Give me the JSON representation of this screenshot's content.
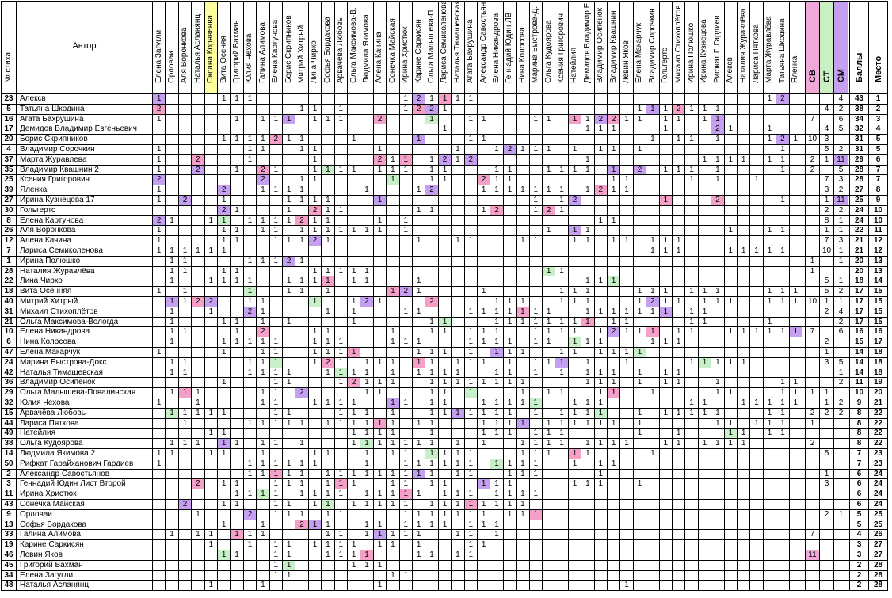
{
  "header": {
    "num_label": "№ стиха",
    "author_label": "Автор",
    "voters": [
      "Елена Загугли",
      "Орловаи",
      "Аля Воронкова",
      "Наталья Асланянц",
      "Оксана Корявенва",
      "Вита Осеняя",
      "Григорий Вахман",
      "Юлия Чехова",
      "Галина Алимова",
      "Елена Картунова",
      "Борис Скрипников",
      "Митрий Хитрый",
      "Лина Чирко",
      "Софья Бордакова",
      "Арвачёва Любовь",
      "Ольга Максимова-В.",
      "Людмила Якимова",
      "Алена Качина",
      "Сонечка Майская",
      "Ирина Христюк",
      "Карине Саркисян",
      "Ольга Малышева-П.",
      "Лариса Семиколенова",
      "Наталья Тимашевская",
      "Агата Бахрушина",
      "Александр Савостьянов",
      "Елена Никандрова",
      "Геннадий Юдин ЛВ",
      "Нина Колосова",
      "Марина Быстрова-Д.",
      "Ольга Кудоярова",
      "Ксения Григорович",
      "Натейлия",
      "Демидов Владимир Е.",
      "Владимир Осипёнок",
      "Владимир Квашнин",
      "Левин Яков",
      "Елена Макарчук",
      "Владимир Сорочкин",
      "Гольгертс",
      "Михаил Стихоплётов",
      "Ирина Полюшко",
      "Ирина Кузнецова",
      "Рифкат Г. Гардиев",
      "Алексв",
      "Наталия Журавлёва",
      "Лариса Пяткова",
      "Марта Журавлёва",
      "Татьяна Шкодина",
      "Яленка"
    ],
    "sv": "СВ",
    "st": "СТ",
    "sm": "СМ",
    "points": "Баллы",
    "place": "Место"
  },
  "rows": [
    {
      "num": "23",
      "author": "Алексв",
      "sv": "",
      "st": "",
      "sm": "4",
      "pts": "43",
      "place": "1"
    },
    {
      "num": "5",
      "author": "Татьяна Шкодина",
      "sv": "",
      "st": "4",
      "sm": "2",
      "pts": "38",
      "place": "2"
    },
    {
      "num": "16",
      "author": "Агата Бахрушина",
      "sv": "7",
      "st": "",
      "sm": "6",
      "pts": "34",
      "place": "3"
    },
    {
      "num": "17",
      "author": "Демидов Владимир Евгеньевич",
      "sv": "",
      "st": "4",
      "sm": "5",
      "pts": "32",
      "place": "4"
    },
    {
      "num": "20",
      "author": "Борис Скрипников",
      "sv": "10",
      "st": "3",
      "sm": "",
      "pts": "31",
      "place": "5"
    },
    {
      "num": "4",
      "author": "Владимир Сорочкин",
      "sv": "",
      "st": "5",
      "sm": "2",
      "pts": "31",
      "place": "5"
    },
    {
      "num": "37",
      "author": "Марта Журавлева",
      "sv": "2",
      "st": "1",
      "sm": "11",
      "pts": "29",
      "place": "6"
    },
    {
      "num": "35",
      "author": "Владимир Квашнин 2",
      "sv": "2",
      "st": "",
      "sm": "5",
      "pts": "28",
      "place": "7"
    },
    {
      "num": "25",
      "author": "Ксения Григорович",
      "sv": "",
      "st": "7",
      "sm": "3",
      "pts": "28",
      "place": "7"
    },
    {
      "num": "39",
      "author": "Яленка",
      "sv": "",
      "st": "3",
      "sm": "2",
      "pts": "27",
      "place": "8"
    },
    {
      "num": "27",
      "author": "Ирина Кузнецова 17",
      "sv": "",
      "st": "1",
      "sm": "11",
      "pts": "25",
      "place": "9"
    },
    {
      "num": "30",
      "author": "Гольгертс",
      "sv": "",
      "st": "2",
      "sm": "2",
      "pts": "24",
      "place": "10"
    },
    {
      "num": "8",
      "author": "Елена Картунова",
      "sv": "",
      "st": "8",
      "sm": "1",
      "pts": "24",
      "place": "10"
    },
    {
      "num": "26",
      "author": "Аля Воронкова",
      "sv": "",
      "st": "1",
      "sm": "1",
      "pts": "22",
      "place": "11"
    },
    {
      "num": "12",
      "author": "Алена Качина",
      "sv": "",
      "st": "7",
      "sm": "3",
      "pts": "21",
      "place": "12"
    },
    {
      "num": "7",
      "author": "Лариса Семиколенова",
      "sv": "",
      "st": "10",
      "sm": "1",
      "pts": "21",
      "place": "12"
    },
    {
      "num": "1",
      "author": "Ирина Полюшко",
      "sv": "1",
      "st": "",
      "sm": "1",
      "pts": "20",
      "place": "13"
    },
    {
      "num": "28",
      "author": "Наталия Журавлёва",
      "sv": "1",
      "st": "",
      "sm": "",
      "pts": "20",
      "place": "13"
    },
    {
      "num": "22",
      "author": "Лина Чирко",
      "sv": "",
      "st": "5",
      "sm": "1",
      "pts": "18",
      "place": "14"
    },
    {
      "num": "18",
      "author": "Вита Осенняя",
      "sv": "",
      "st": "5",
      "sm": "2",
      "pts": "17",
      "place": "15"
    },
    {
      "num": "40",
      "author": "Митрий Хитрый",
      "sv": "10",
      "st": "1",
      "sm": "1",
      "pts": "17",
      "place": "15"
    },
    {
      "num": "31",
      "author": "Михаил Стихоплётов",
      "sv": "",
      "st": "2",
      "sm": "4",
      "pts": "17",
      "place": "15"
    },
    {
      "num": "21",
      "author": "Ольга Максимова-Вологда",
      "sv": "",
      "st": "",
      "sm": "2",
      "pts": "17",
      "place": "15"
    },
    {
      "num": "10",
      "author": "Елена Никандрова",
      "sv": "7",
      "st": "",
      "sm": "6",
      "pts": "16",
      "place": "16"
    },
    {
      "num": "6",
      "author": "Нина Колосова",
      "sv": "",
      "st": "2",
      "sm": "",
      "pts": "15",
      "place": "17"
    },
    {
      "num": "47",
      "author": "Елена Макарчук",
      "sv": "",
      "st": "1",
      "sm": "",
      "pts": "14",
      "place": "18"
    },
    {
      "num": "24",
      "author": "Марина Быстрова-Докс",
      "sv": "",
      "st": "3",
      "sm": "5",
      "pts": "14",
      "place": "18"
    },
    {
      "num": "42",
      "author": "Наталья Тимашевская",
      "sv": "",
      "st": "",
      "sm": "1",
      "pts": "14",
      "place": "18"
    },
    {
      "num": "36",
      "author": "Владимир Осипёнок",
      "sv": "",
      "st": "",
      "sm": "2",
      "pts": "11",
      "place": "19"
    },
    {
      "num": "29",
      "author": "Ольга Малышева-Повалинская",
      "sv": "1",
      "st": "1",
      "sm": "",
      "pts": "10",
      "place": "20"
    },
    {
      "num": "32",
      "author": "Юлия Чехова",
      "sv": "",
      "st": "1",
      "sm": "2",
      "pts": "9",
      "place": "21"
    },
    {
      "num": "15",
      "author": "Арвачёва Любовь",
      "sv": "2",
      "st": "2",
      "sm": "2",
      "pts": "8",
      "place": "22"
    },
    {
      "num": "44",
      "author": "Лариса Пяткова",
      "sv": "1",
      "st": "",
      "sm": "",
      "pts": "8",
      "place": "22"
    },
    {
      "num": "49",
      "author": "Натейлия",
      "sv": "",
      "st": "",
      "sm": "",
      "pts": "8",
      "place": "22"
    },
    {
      "num": "38",
      "author": "Ольга Кудоярова",
      "sv": "2",
      "st": "",
      "sm": "",
      "pts": "8",
      "place": "22"
    },
    {
      "num": "14",
      "author": "Людмила Якимова 2",
      "sv": "",
      "st": "5",
      "sm": "",
      "pts": "7",
      "place": "23"
    },
    {
      "num": "50",
      "author": "Рифкат Гарайханович Гардиев",
      "sv": "",
      "st": "",
      "sm": "",
      "pts": "7",
      "place": "23"
    },
    {
      "num": "2",
      "author": "Александр Савостьянов",
      "sv": "",
      "st": "1",
      "sm": "",
      "pts": "6",
      "place": "24"
    },
    {
      "num": "3",
      "author": "Геннадий Юдин Лист Второй",
      "sv": "",
      "st": "3",
      "sm": "",
      "pts": "6",
      "place": "24"
    },
    {
      "num": "11",
      "author": "Ирина Христюк",
      "sv": "",
      "st": "",
      "sm": "",
      "pts": "6",
      "place": "24"
    },
    {
      "num": "43",
      "author": "Сонечка Майская",
      "sv": "",
      "st": "",
      "sm": "",
      "pts": "6",
      "place": "24"
    },
    {
      "num": "9",
      "author": "Орловаи",
      "sv": "",
      "st": "2",
      "sm": "1",
      "pts": "5",
      "place": "25"
    },
    {
      "num": "13",
      "author": "Софья Бордакова",
      "sv": "",
      "st": "",
      "sm": "",
      "pts": "5",
      "place": "25"
    },
    {
      "num": "33",
      "author": "Галина Алимова",
      "sv": "7",
      "st": "",
      "sm": "",
      "pts": "4",
      "place": "26"
    },
    {
      "num": "19",
      "author": "Карине Саркисян",
      "sv": "",
      "st": "",
      "sm": "",
      "pts": "3",
      "place": "27"
    },
    {
      "num": "46",
      "author": "Левин Яков",
      "sv": "11",
      "st": "",
      "sm": "",
      "pts": "3",
      "place": "27"
    },
    {
      "num": "45",
      "author": "Григорий Вахман",
      "sv": "",
      "st": "",
      "sm": "",
      "pts": "2",
      "place": "28"
    },
    {
      "num": "34",
      "author": "Елена Загугли",
      "sv": "",
      "st": "",
      "sm": "",
      "pts": "2",
      "place": "28"
    },
    {
      "num": "48",
      "author": "Наталья Асланянц",
      "sv": "",
      "st": "",
      "sm": "",
      "pts": "2",
      "place": "28"
    }
  ],
  "cells": [
    "1.........1.1.1..1.1.2.....1...1.1....1.2.1.1.1.1..1.1.1.....1.....1.1.....1.1.1.2...1.....2..1.2..2.......",
    "2..........2.2.1......1.1...1.........1.2.2.1..1.....1.....1.1.2.1.1...1..1.1.1.2.1.1.1....1.1.2........",
    "1....1......1...1.1.1...1.1.1..1..2.......1..1..1.1..1....1.1...1.1.2.2.1.1...1.1...1.1..2.1.1.......1.2.1..",
    ".1...1.2.1.1.1.........1...1...1.......1.1..1..1.1.2.1.1..........1.1.1.......1.......2.1.....1..1.1.1.1.1..",
    "...1......1.1.1.1.2.1.1..1.1..1..1.1....1.......1.1......1.....1.1.1...1....1...1.1...1..1.1..1.2.1...1.2....",
    "1.............1.1.....1.1..2.1.1..1......1.1..1..1..1.2.1.1.1...1...1.1...1..2.1.1.....1.1.1....1...2.......",
    "1.....2.......1.........1.........2.1.1...1.2.1.2......1.....1.1..1....1.1.1.1.1....1.1.1.1...1.1..1..1......",
    "1.....2.....1...2.1.....1.1.1.1...1.1.1...1.1.......1.1.....1.1.1.1...1...2...1.1.1...1..1.1.1..1............",
    "2...............2..1..1.1...........1.....1.1..1..2.1.1..1.1.1........1.1....1.2..1...1.....1..1.1.1.1.2......",
    "1.........2.....1.1.1.1.........1..1....1.2.......1.1.1.1.1.1.1...1.2.1.1....1.2...........1.1...............",
    "1...2.....1.........1.1.1.1.......1....1.......2.1.1.2....1...1.2....1.1.2.2..1.......2.........1..1.1.1.....",
    "..........2.1.......1...2.1.1...........1.1.......1.2.....1.2.1..1.......1.2.2.1......................1......",
    "2.1.....1.1...1.1.1.1.2.1.1.......1...1..1.......1.1.1.....2........1.1........1.1.1.1.........1.1...........",
    "1.........1.1...1.1...1.1.1.1.1.1.1...1..1.1.....1...1.1....1...1.1....1.......2........1.....1.1............",
    "1.........1.1.....1.1.1.2.1.............1.....1.1.......1.1.....1.1...1.1...1.1.1..1.1...1...........1.......",
    "1.1.1.1.1.1..1.1.1.2.1...1.1.............1.1.1.1...1.1.......1.1.1.1.1.1....1.1.1.......1.1.1.1.1...........",
    "..1.1.........1.1.1.2.1..............1...........1.1.....1.1.1.1.1.2.1.1.1.......1.....1...1.1.1.1.1.........",
    "..1.1.....1.1...........1.1.1.1.1........1.1.1...1.1.1......1.1....1.1...1.1...1.....1.1...1.1.1.1.1.........",
    "..1.....1.1.1.1.....1.1.1.1...1.1.......1..1.1.........1.1.1.1....1.1.1....1.......1.1.1.1.1...1.1.1.........",
    "1...1.........1.....1.1...1.........1.2.1.........1...........1.1.1.......1.1.1...1.1.1.......1.1.1..........",
    "..1.1.2.2.....1.1.......1.....1.2.1.......2.........1.1.1.....1.1.1.......1.2.1.1...1.1.1.....1.1.1.1........",
    "..1.....1.....2.1.........1...1.......1.1.......1.1.1.1.1.1.1.....1.1.1.1.1.1.1...1.1..........1.1.1.........",
    "..1.......1.1...1...1.........1...........1.1.......1.1.1.1.1.1.1.1...1.1.........1.1.........1..............",
    "..1.1.......1...2.......1.1.........1.....1.1...1.1.1.....1.1.1.1...1.2.1.1.1...1.1.....1.1.1.1.1.1..........",
    "..1.......1.1.1.1.1.....1.1.1.......1.1.1.......1.1.1.1...1.1...1.1.1.......1.1.1.............................",
    "1.........1.....1.1.....1.1.1.1.........1.1.1...1...1.1.1.....1.1...1.1.1.1...................................",
    "..1.1.........1.1.1.....1.2.1...1.1.1...1.1...1.1.1...1...1.1.1...1.....1.........1.1.1.1.1...................",
    "..1.1.........1.1.1.1.....1.1.1.1...1...1.1.1.1.....1.1...1...1...1.1.1...1...1.1...........................1",
    "..........1.......1.1.......1.2.1.1.1.....1.1.1.1.1.1.1.1.........1.1.1...1...1.1.....1.........1.1...........",
    "..1.1.1.........1.1...2.........1.1.......1.1...1.......1...1.1.....1.1.....1.........1.1.......1.1.1.........",
    "1.....1.........1.1.....1.1.1.1.....1.1...1.1.....1.1.1.1.1.....1.1.1.............1.1.....1.1.1.1.1...........",
    "..1.1.1.1.1.......1.1.......1.1.1...1.....1.1.1.1.1.1.1...1...1.1.1.1.....1...1.1.1.1.1.......1.1.............",
    "....1.........1.1.1.1.1...1.1.1.1.1.1...1.1.......1.1.1.1...1.1.1.1.1.1...1...........1.1...1.1.1.............",
    "........1.1...................1.1.1.1.....1.......1.1.1...1.1.1...........1.....1.......1.1...1.1.............",
    "..1.1.1...1.1...1.1...1.......1.1.1.1.1.1.1...1...1.....1.1.1.1...1.1.1.1.....1.1...1.1.1.1...................",
    "1.1.....1.1.....1.......1.1.....1...1.1...1.1.1.1.......1.1.1...1.1.........1.................................",
    "1.............1.1.1.1.1.1.......1.....1.1.1.1.1.1...1.1.1.1.....1...1.1.......................................",
    "..............1.1.1.1.1...1.1.1.1.1.1.1.1.1...1.1.....1.1.1.........1.........................................",
    "......2...1.1.....1.1.1...1.1.1.....1.1...1.1.....1.1.1.........1.1.1.....1...................................",
    "............1.1.1.1...1.1.1.1...1.1.1.1.1...1.1.1...1.1.1.1...................................................",
    "....2.....1.1.....1.1...1.1...1.1.1.1.1...1.1.1.1.1.1.1.1.............................................1.......",
    "......1.......2...1.1.1...1.1.........1.1.1.1.1.1.1...1.1.1...........................................1.......",
    "..........1.....1.....2.1.1.....1.1...1.1.1.1...1.1.1.........................................................",
    "..1...1.1...1.1.1.........1.1...1.1.1.1.1.....1.1...1.........................................................",
    "........1.....1...1.1...1.1.1.1...1.1...1.......1.1...........................................................",
    "..........1.1.....1.1.....1.1.1.1.......1.1...1.1.............................................................",
    "..................1.1.........1.1.1...........................................................................",
    "..................1.1...............1.1.......................................................................",
    "........1.......1.................1.....................................1....................................."
  ],
  "legend_colors": {
    "sv_header": "#f0a8d8",
    "st_header": "#c8f0c0",
    "sm_header": "#c6a0f0",
    "highlight_voter": "#ffffa0"
  }
}
